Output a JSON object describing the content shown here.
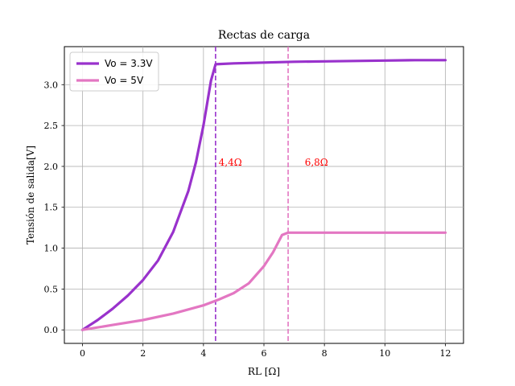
{
  "chart_data": {
    "type": "line",
    "title": "Rectas de carga",
    "xlabel": "RL [Ω]",
    "ylabel": "Tensión de salida[V]",
    "xlim": [
      -0.6,
      12.6
    ],
    "ylim": [
      -0.165,
      3.465
    ],
    "xticks": [
      0,
      2,
      4,
      6,
      8,
      10,
      12
    ],
    "yticks": [
      0.0,
      0.5,
      1.0,
      1.5,
      2.0,
      2.5,
      3.0
    ],
    "xtick_labels": [
      "0",
      "2",
      "4",
      "6",
      "8",
      "10",
      "12"
    ],
    "ytick_labels": [
      "0.0",
      "0.5",
      "1.0",
      "1.5",
      "2.0",
      "2.5",
      "3.0"
    ],
    "grid": true,
    "legend_position": "top-left",
    "series": [
      {
        "name": "Vo = 3.3V",
        "color": "#9932cc",
        "x": [
          0,
          0.5,
          1,
          1.5,
          2,
          2.5,
          3,
          3.5,
          3.75,
          4.0,
          4.25,
          4.4,
          5,
          6,
          7,
          8,
          9,
          10,
          11,
          12
        ],
        "y": [
          0.0,
          0.12,
          0.26,
          0.42,
          0.61,
          0.85,
          1.2,
          1.7,
          2.05,
          2.5,
          3.05,
          3.25,
          3.26,
          3.27,
          3.28,
          3.285,
          3.29,
          3.295,
          3.3,
          3.3
        ]
      },
      {
        "name": "Vo = 5V",
        "color": "#e377c2",
        "x": [
          0,
          1,
          2,
          3,
          4,
          4.5,
          5,
          5.5,
          6,
          6.3,
          6.6,
          6.8,
          7,
          8,
          9,
          10,
          11,
          12
        ],
        "y": [
          0.0,
          0.06,
          0.12,
          0.2,
          0.3,
          0.37,
          0.45,
          0.57,
          0.78,
          0.95,
          1.16,
          1.19,
          1.19,
          1.19,
          1.19,
          1.19,
          1.19,
          1.19
        ]
      }
    ],
    "vlines": [
      {
        "x": 4.4,
        "color": "#9932cc",
        "style": "dashed"
      },
      {
        "x": 6.8,
        "color": "#e377c2",
        "style": "dashed"
      }
    ],
    "annotations": [
      {
        "text": "4,4Ω",
        "x": 4.5,
        "y": 2.05,
        "color": "#ff0000"
      },
      {
        "text": "6,8Ω",
        "x": 7.35,
        "y": 2.05,
        "color": "#ff0000"
      }
    ]
  }
}
